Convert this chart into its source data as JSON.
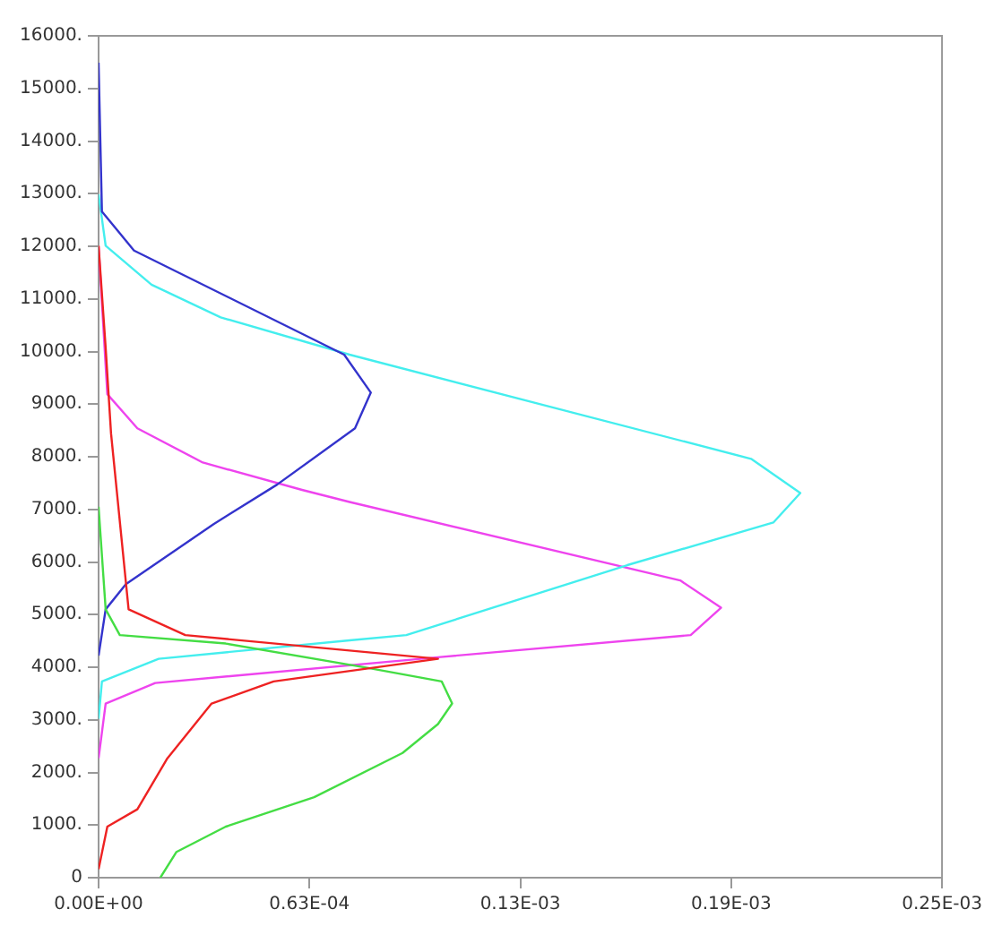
{
  "chart_data": {
    "type": "line",
    "grid": false,
    "marker": "none",
    "line_style": "solid",
    "xlim": [
      0,
      0.00025
    ],
    "xticks": [
      {
        "value": 0,
        "label": "0.00E+00"
      },
      {
        "value": 6.25e-05,
        "label": "0.63E-04"
      },
      {
        "value": 0.000125,
        "label": "0.13E-03"
      },
      {
        "value": 0.0001875,
        "label": "0.19E-03"
      },
      {
        "value": 0.00025,
        "label": "0.25E-03"
      }
    ],
    "ylim": [
      0,
      16000
    ],
    "yticks": [
      0,
      {
        "value": 1000,
        "label": "1000."
      },
      {
        "value": 2000,
        "label": "2000."
      },
      {
        "value": 3000,
        "label": "3000."
      },
      {
        "value": 4000,
        "label": "4000."
      },
      {
        "value": 5000,
        "label": "5000."
      },
      {
        "value": 6000,
        "label": "6000."
      },
      {
        "value": 7000,
        "label": "7000."
      },
      {
        "value": 8000,
        "label": "8000."
      },
      {
        "value": 9000,
        "label": "9000."
      },
      {
        "value": 10000,
        "label": "10000."
      },
      {
        "value": 11000,
        "label": "11000."
      },
      {
        "value": 12000,
        "label": "12000."
      },
      {
        "value": 13000,
        "label": "13000."
      },
      {
        "value": 14000,
        "label": "14000."
      },
      {
        "value": 15000,
        "label": "15000."
      },
      {
        "value": 16000,
        "label": "16000."
      }
    ],
    "series": [
      {
        "color": "#ee2222",
        "x": [
          0,
          2.6e-06,
          1.15e-05,
          2.04e-05,
          3.35e-05,
          5.19e-05,
          0.0001006,
          2.57e-05,
          8.9e-06,
          3.7e-06,
          2.1e-06,
          0
        ],
        "values": [
          160,
          970,
          1300,
          2270,
          3310,
          3730,
          4160,
          4610,
          5100,
          8440,
          10070,
          12010
        ]
      },
      {
        "color": "#44dd44",
        "x": [
          1.83e-05,
          2.31e-05,
          3.77e-05,
          6.39e-05,
          9.01e-05,
          0.0001006,
          0.0001048,
          0.0001017,
          7.96e-05,
          3.77e-05,
          6.3e-06,
          2.1e-06,
          0
        ],
        "values": [
          0,
          490,
          970,
          1530,
          2370,
          2920,
          3310,
          3730,
          3990,
          4450,
          4610,
          5100,
          7050
        ]
      },
      {
        "color": "#3333cc",
        "x": [
          0,
          1e-06,
          1.05e-05,
          7.28e-05,
          8.07e-05,
          7.6e-05,
          5.29e-05,
          3.41e-05,
          8.1e-06,
          2.1e-06,
          0
        ],
        "values": [
          15490,
          12660,
          11920,
          9940,
          9220,
          8540,
          7470,
          6720,
          5580,
          5100,
          4220
        ]
      },
      {
        "color": "#44eeee",
        "x": [
          0,
          2.1e-06,
          1.57e-05,
          3.62e-05,
          7.44e-05,
          0.0001934,
          0.000208,
          0.0002,
          0.0001567,
          9.12e-05,
          7.44e-05,
          1.78e-05,
          1e-06,
          0
        ],
        "values": [
          12990,
          12010,
          11270,
          10650,
          9940,
          7960,
          7310,
          6750,
          5940,
          4610,
          4510,
          4160,
          3730,
          3020
        ]
      },
      {
        "color": "#ee44ee",
        "x": [
          0,
          2.6e-06,
          1.15e-05,
          3.09e-05,
          6.03e-05,
          7.44e-05,
          0.0001724,
          0.0001845,
          0.0001755,
          0.0001006,
          1.68e-05,
          2.1e-06,
          0
        ],
        "values": [
          12000,
          9190,
          8540,
          7890,
          7370,
          7140,
          5650,
          5130,
          4610,
          4190,
          3700,
          3310,
          2270
        ]
      }
    ]
  }
}
